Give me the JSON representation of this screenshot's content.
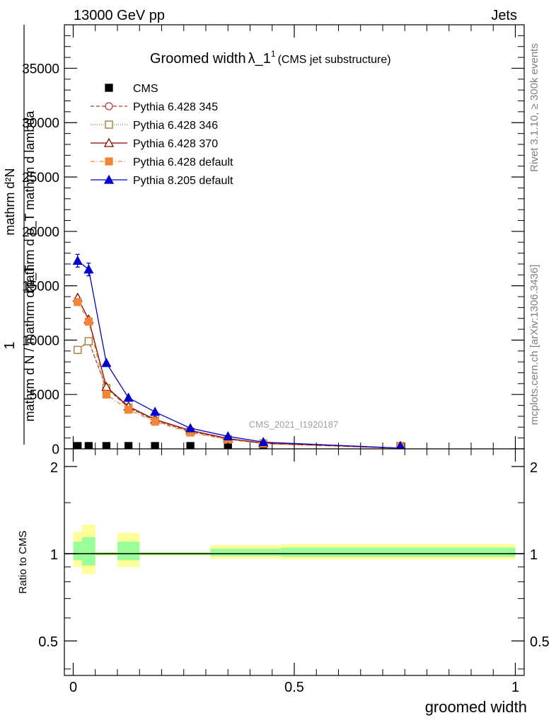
{
  "header": {
    "energy_label": "13000 GeV pp",
    "process_label": "Jets",
    "title_main": "Groomed width",
    "title_lambda": "λ_1",
    "title_sup": "1",
    "title_sub": "(CMS jet substructure)",
    "watermark": "CMS_2021_I1920187",
    "side_rivet": "Rivet 3.1.10, ≥ 300k events",
    "side_mcplots": "mcplots.cern.ch [arXiv:1306.3436]"
  },
  "y_axis_main": {
    "line1": "mathrm d²N",
    "line2": "mathrm d p_T mathrm d lambda",
    "line3": "1",
    "line4": "mathrm d N / mathrm d p_T"
  },
  "y_axis_ratio": {
    "label": "Ratio to CMS"
  },
  "x_axis": {
    "label": "groomed width"
  },
  "colors": {
    "cms": "#000000",
    "p345": "#b23b3b",
    "p346": "#9b7a30",
    "p370": "#8b0000",
    "pdefault": "#f58536",
    "p8": "#0000cc",
    "band_outer": "#ffff99",
    "band_inner": "#99ff99"
  },
  "chart_data": [
    {
      "type": "line",
      "title": "Groomed width λ_1^1 (CMS jet substructure)",
      "xlabel": "groomed width",
      "ylabel": "1/(mathrm d N / mathrm d p_T) mathrm d²N / (mathrm d p_T mathrm d lambda)",
      "xlim": [
        -0.02,
        1.02
      ],
      "ylim": [
        0,
        39000
      ],
      "x_ticks": [
        {
          "v": 0,
          "label": "0"
        },
        {
          "v": 0.5,
          "label": "0.5"
        },
        {
          "v": 1,
          "label": "1"
        }
      ],
      "y_ticks": [
        {
          "v": 0,
          "label": "0"
        },
        {
          "v": 5000,
          "label": "5000"
        },
        {
          "v": 10000,
          "label": "10000"
        },
        {
          "v": 15000,
          "label": "15000"
        },
        {
          "v": 20000,
          "label": "20000"
        },
        {
          "v": 25000,
          "label": "25000"
        },
        {
          "v": 30000,
          "label": "30000"
        },
        {
          "v": 35000,
          "label": "35000"
        }
      ],
      "legend_position": "top-left",
      "series": [
        {
          "name": "CMS",
          "key": "cms",
          "marker": "square-filled",
          "dash": "none",
          "x": [
            0.01,
            0.035,
            0.075,
            0.125,
            0.185,
            0.265,
            0.35,
            0.43,
            0.74
          ],
          "y": [
            50,
            50,
            40,
            30,
            20,
            15,
            10,
            8,
            5
          ]
        },
        {
          "name": "Pythia 6.428 345",
          "key": "p345",
          "marker": "circle-open",
          "dash": "5,3",
          "x": [
            0.01,
            0.035,
            0.075,
            0.125,
            0.185,
            0.265,
            0.35,
            0.43,
            0.74
          ],
          "y": [
            9100,
            9900,
            5600,
            3800,
            2600,
            1600,
            900,
            500,
            60
          ]
        },
        {
          "name": "Pythia 6.428 346",
          "key": "p346",
          "marker": "square-open",
          "dash": "1,2",
          "x": [
            0.01,
            0.035,
            0.075,
            0.125,
            0.185,
            0.265,
            0.35,
            0.43,
            0.74
          ],
          "y": [
            9100,
            9900,
            5600,
            3800,
            2600,
            1600,
            900,
            500,
            60
          ]
        },
        {
          "name": "Pythia 6.428 370",
          "key": "p370",
          "marker": "triangle-open",
          "dash": "none",
          "x": [
            0.01,
            0.035,
            0.075,
            0.125,
            0.185,
            0.265,
            0.35,
            0.43,
            0.74
          ],
          "y": [
            13900,
            11900,
            5700,
            3900,
            2700,
            1700,
            950,
            520,
            60
          ]
        },
        {
          "name": "Pythia 6.428 default",
          "key": "pdefault",
          "marker": "square-filled",
          "dash": "6,3,1,3",
          "x": [
            0.01,
            0.035,
            0.075,
            0.125,
            0.185,
            0.265,
            0.35,
            0.43,
            0.74
          ],
          "y": [
            13500,
            11700,
            5000,
            3600,
            2500,
            1500,
            850,
            480,
            55
          ]
        },
        {
          "name": "Pythia 8.205 default",
          "key": "p8",
          "marker": "triangle-filled",
          "dash": "none",
          "x": [
            0.01,
            0.035,
            0.075,
            0.125,
            0.185,
            0.265,
            0.35,
            0.43,
            0.74
          ],
          "y": [
            17300,
            16500,
            7900,
            4700,
            3400,
            1900,
            1150,
            620,
            70
          ]
        }
      ]
    },
    {
      "type": "area",
      "title": "",
      "xlabel": "groomed width",
      "ylabel": "Ratio to CMS",
      "xlim": [
        -0.02,
        1.02
      ],
      "ylim": [
        0.38,
        2.3
      ],
      "y_scale": "log",
      "x_ticks": [
        {
          "v": 0,
          "label": "0"
        },
        {
          "v": 0.5,
          "label": "0.5"
        },
        {
          "v": 1,
          "label": "1"
        }
      ],
      "y_ticks": [
        {
          "v": 0.5,
          "label": "0.5"
        },
        {
          "v": 1,
          "label": "1"
        },
        {
          "v": 2,
          "label": "2"
        }
      ],
      "bins": [
        {
          "x0": 0.0,
          "x1": 0.02,
          "outer": [
            0.9,
            1.19
          ],
          "inner": [
            0.95,
            1.1
          ]
        },
        {
          "x0": 0.02,
          "x1": 0.05,
          "outer": [
            0.85,
            1.26
          ],
          "inner": [
            0.91,
            1.14
          ]
        },
        {
          "x0": 0.05,
          "x1": 0.1,
          "outer": [
            0.985,
            1.015
          ],
          "inner": [
            0.99,
            1.01
          ]
        },
        {
          "x0": 0.1,
          "x1": 0.15,
          "outer": [
            0.9,
            1.18
          ],
          "inner": [
            0.95,
            1.1
          ]
        },
        {
          "x0": 0.15,
          "x1": 0.31,
          "outer": [
            0.985,
            1.015
          ],
          "inner": [
            0.99,
            1.01
          ]
        },
        {
          "x0": 0.31,
          "x1": 0.47,
          "outer": [
            0.96,
            1.07
          ],
          "inner": [
            0.98,
            1.04
          ]
        },
        {
          "x0": 0.47,
          "x1": 1.0,
          "outer": [
            0.955,
            1.08
          ],
          "inner": [
            0.975,
            1.05
          ]
        }
      ]
    }
  ]
}
